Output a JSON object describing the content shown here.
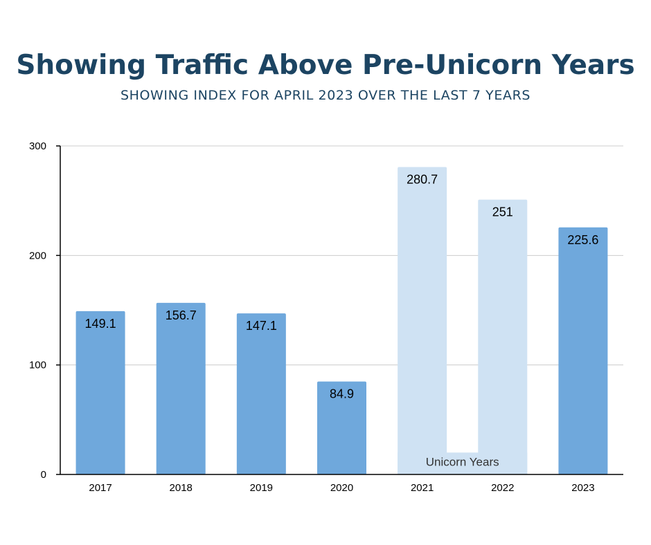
{
  "title": "Showing Traffic Above Pre-Unicorn Years",
  "subtitle": "SHOWING INDEX FOR APRIL 2023 OVER THE LAST 7 YEARS",
  "colors": {
    "standard_bar": "#6fa8dc",
    "unicorn_bar": "#cfe2f3",
    "title": "#1c4462",
    "grid": "#cccccc",
    "axis": "#000000"
  },
  "chart_data": {
    "type": "bar",
    "categories": [
      "2017",
      "2018",
      "2019",
      "2020",
      "2021",
      "2022",
      "2023"
    ],
    "values": [
      149.1,
      156.7,
      147.1,
      84.9,
      280.7,
      251,
      225.6
    ],
    "data_labels": [
      "149.1",
      "156.7",
      "147.1",
      "84.9",
      "280.7",
      "251",
      "225.6"
    ],
    "highlight": [
      false,
      false,
      false,
      false,
      true,
      true,
      false
    ],
    "bracket": {
      "from": "2021",
      "to": "2022",
      "value": 20,
      "label": "Unicorn Years"
    },
    "ylim": [
      0,
      300
    ],
    "yticks": [
      0,
      100,
      200,
      300
    ],
    "xlabel": "",
    "ylabel": "",
    "grid": true,
    "legend": "none"
  }
}
